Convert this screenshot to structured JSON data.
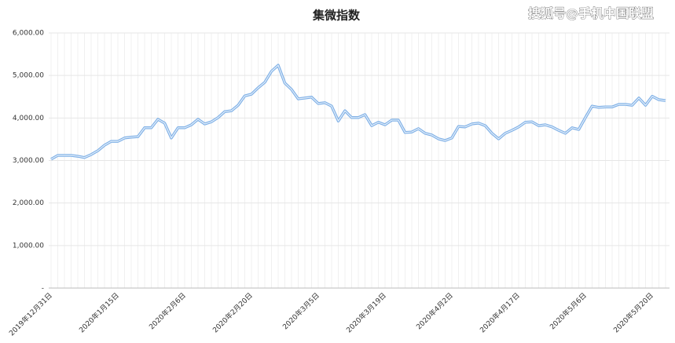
{
  "chart_data": {
    "type": "line",
    "title": "集微指数",
    "watermark": "搜狐号@手机中国联盟",
    "categories": [
      "2019年12月31日",
      null,
      null,
      null,
      null,
      null,
      null,
      null,
      null,
      null,
      "2020年1月15日",
      null,
      null,
      null,
      null,
      null,
      null,
      null,
      null,
      null,
      "2020年2月6日",
      null,
      null,
      null,
      null,
      null,
      null,
      null,
      null,
      null,
      "2020年2月20日",
      null,
      null,
      null,
      null,
      null,
      null,
      null,
      null,
      null,
      "2020年3月5日",
      null,
      null,
      null,
      null,
      null,
      null,
      null,
      null,
      null,
      "2020年3月19日",
      null,
      null,
      null,
      null,
      null,
      null,
      null,
      null,
      null,
      "2020年4月2日",
      null,
      null,
      null,
      null,
      null,
      null,
      null,
      null,
      null,
      "2020年4月17日",
      null,
      null,
      null,
      null,
      null,
      null,
      null,
      null,
      null,
      "2020年5月6日",
      null,
      null,
      null,
      null,
      null,
      null,
      null,
      null,
      null,
      "2020年5月20日",
      null,
      null
    ],
    "series": [
      {
        "name": "集微指数",
        "color": "#7fb0e6",
        "values": [
          3030,
          3120,
          3120,
          3120,
          3100,
          3070,
          3140,
          3230,
          3360,
          3450,
          3450,
          3530,
          3550,
          3560,
          3770,
          3770,
          3970,
          3880,
          3530,
          3770,
          3770,
          3840,
          3970,
          3860,
          3910,
          4010,
          4150,
          4170,
          4300,
          4520,
          4560,
          4710,
          4840,
          5100,
          5240,
          4820,
          4670,
          4450,
          4470,
          4490,
          4340,
          4360,
          4280,
          3930,
          4170,
          4010,
          4010,
          4080,
          3820,
          3900,
          3840,
          3950,
          3950,
          3660,
          3670,
          3750,
          3640,
          3600,
          3510,
          3470,
          3530,
          3800,
          3790,
          3860,
          3880,
          3820,
          3640,
          3510,
          3640,
          3710,
          3790,
          3900,
          3910,
          3820,
          3840,
          3790,
          3710,
          3640,
          3770,
          3730,
          4010,
          4280,
          4250,
          4260,
          4260,
          4320,
          4320,
          4300,
          4470,
          4300,
          4510,
          4430,
          4410
        ]
      }
    ],
    "ylim": [
      0,
      6000
    ],
    "yticks": [
      {
        "value": 0,
        "label": "-"
      },
      {
        "value": 1000,
        "label": "1,000.00"
      },
      {
        "value": 2000,
        "label": "2,000.00"
      },
      {
        "value": 3000,
        "label": "3,000.00"
      },
      {
        "value": 4000,
        "label": "4,000.00"
      },
      {
        "value": 5000,
        "label": "5,000.00"
      },
      {
        "value": 6000,
        "label": "6,000.00"
      }
    ],
    "grid": true
  }
}
